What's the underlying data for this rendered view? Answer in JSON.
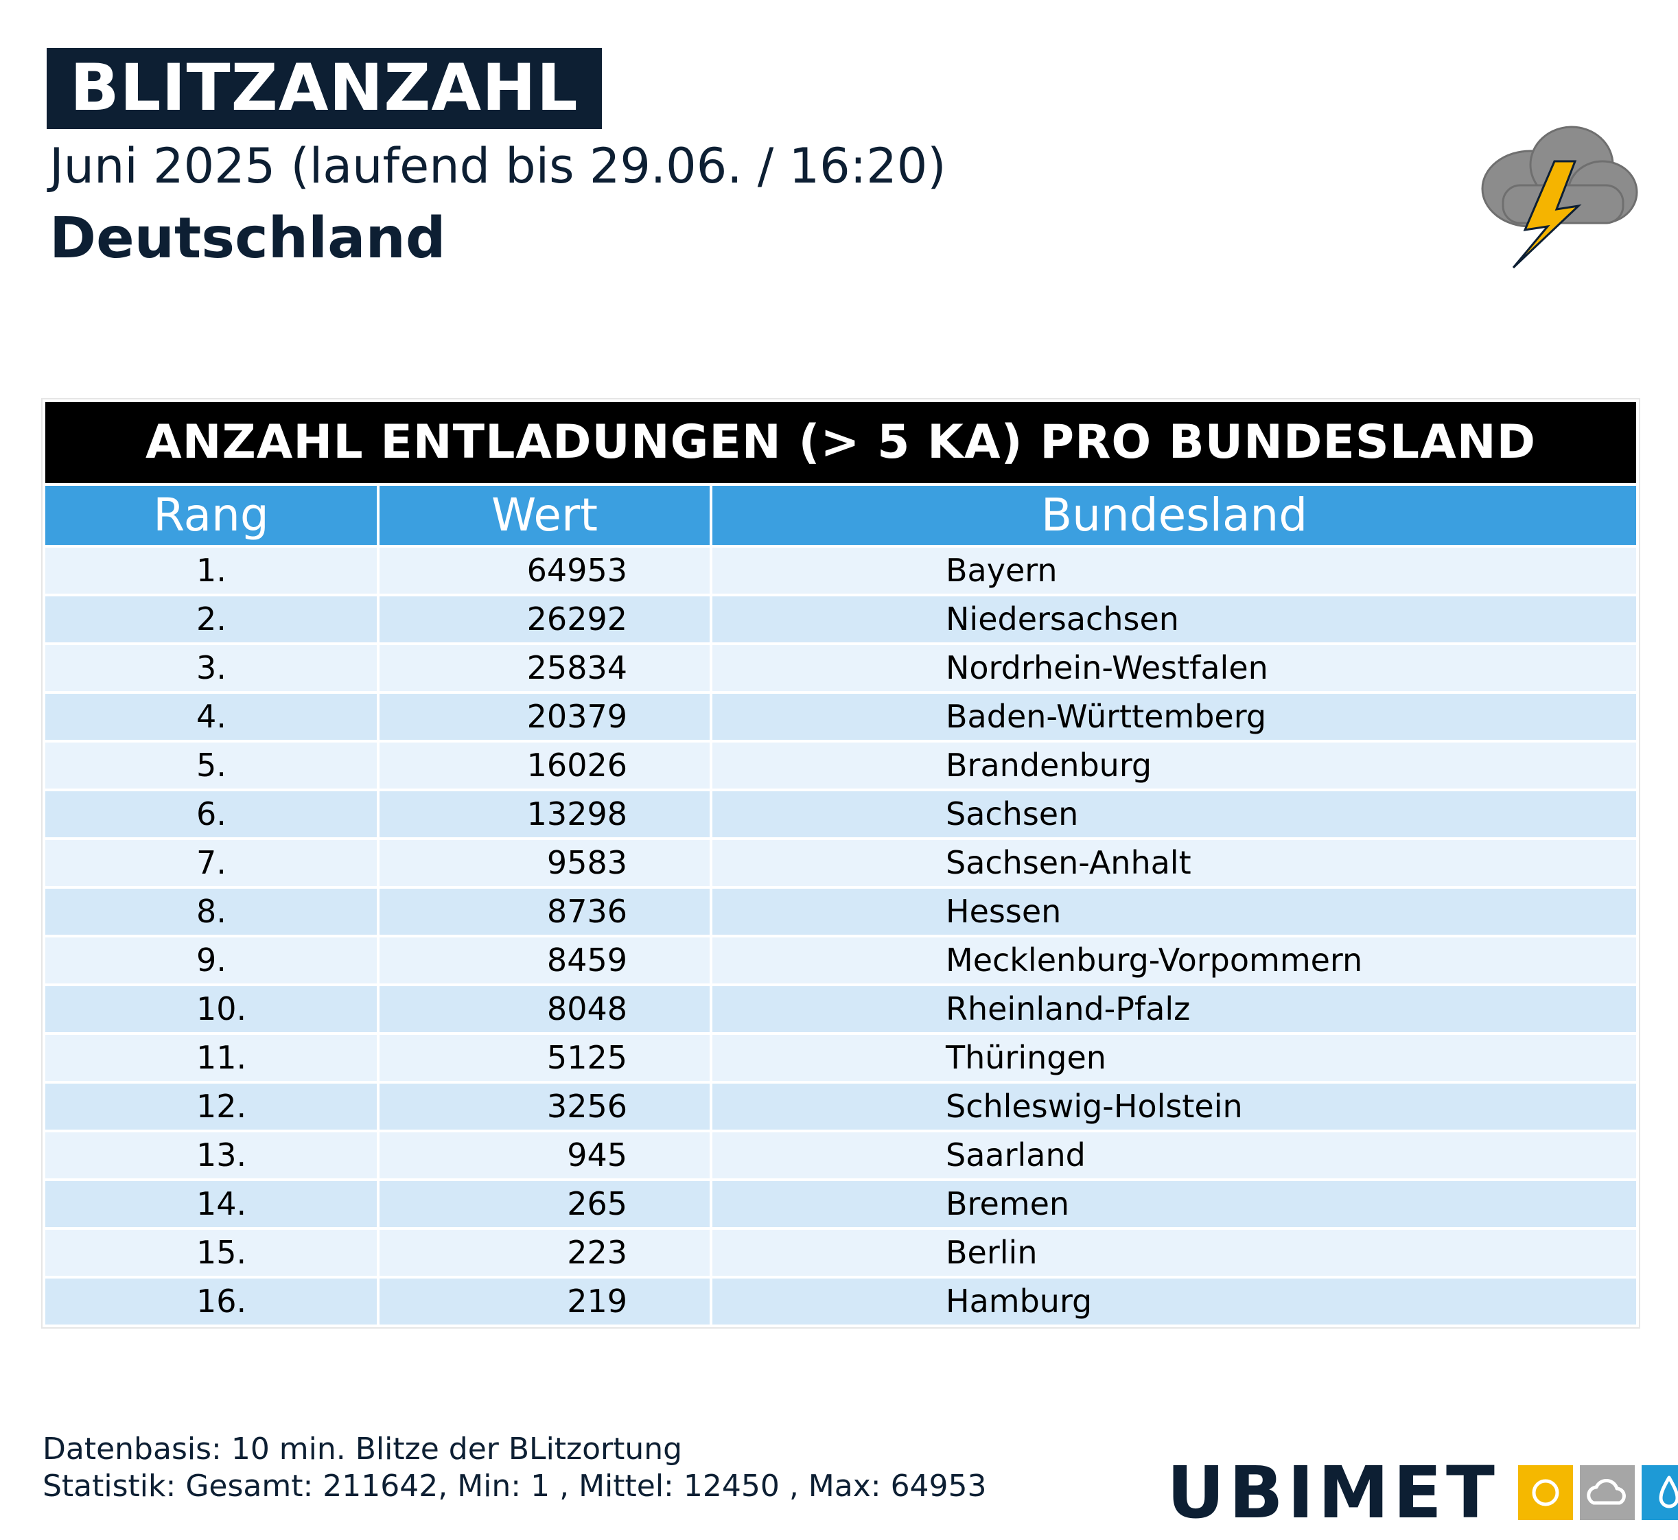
{
  "header": {
    "title": "BLITZANZAHL",
    "subtitle": "Juni 2025 (laufend bis 29.06. / 16:20)",
    "region": "Deutschland",
    "icon": "thunderstorm-cloud-icon"
  },
  "chart_data": {
    "type": "table",
    "title": "ANZAHL ENTLADUNGEN (> 5 KA) PRO BUNDESLAND",
    "columns": [
      "Rang",
      "Wert",
      "Bundesland"
    ],
    "rows": [
      {
        "rank": "1.",
        "value": "64953",
        "state": "Bayern"
      },
      {
        "rank": "2.",
        "value": "26292",
        "state": "Niedersachsen"
      },
      {
        "rank": "3.",
        "value": "25834",
        "state": "Nordrhein-Westfalen"
      },
      {
        "rank": "4.",
        "value": "20379",
        "state": "Baden-Württemberg"
      },
      {
        "rank": "5.",
        "value": "16026",
        "state": "Brandenburg"
      },
      {
        "rank": "6.",
        "value": "13298",
        "state": "Sachsen"
      },
      {
        "rank": "7.",
        "value": "9583",
        "state": "Sachsen-Anhalt"
      },
      {
        "rank": "8.",
        "value": "8736",
        "state": "Hessen"
      },
      {
        "rank": "9.",
        "value": "8459",
        "state": "Mecklenburg-Vorpommern"
      },
      {
        "rank": "10.",
        "value": "8048",
        "state": "Rheinland-Pfalz"
      },
      {
        "rank": "11.",
        "value": "5125",
        "state": "Thüringen"
      },
      {
        "rank": "12.",
        "value": "3256",
        "state": "Schleswig-Holstein"
      },
      {
        "rank": "13.",
        "value": "945",
        "state": "Saarland"
      },
      {
        "rank": "14.",
        "value": "265",
        "state": "Bremen"
      },
      {
        "rank": "15.",
        "value": "223",
        "state": "Berlin"
      },
      {
        "rank": "16.",
        "value": "219",
        "state": "Hamburg"
      }
    ]
  },
  "footer": {
    "line1": "Datenbasis: 10 min. Blitze der BLitzortung",
    "line2": "Statistik: Gesamt: 211642, Min: 1 , Mittel: 12450 , Max: 64953"
  },
  "logo": {
    "text": "UBIMET",
    "icons": [
      "sun-icon",
      "cloud-icon",
      "drop-icon"
    ],
    "colors": {
      "sun": "#f5b800",
      "cloud": "#a6a6a6",
      "drop": "#1e9ad6"
    }
  }
}
